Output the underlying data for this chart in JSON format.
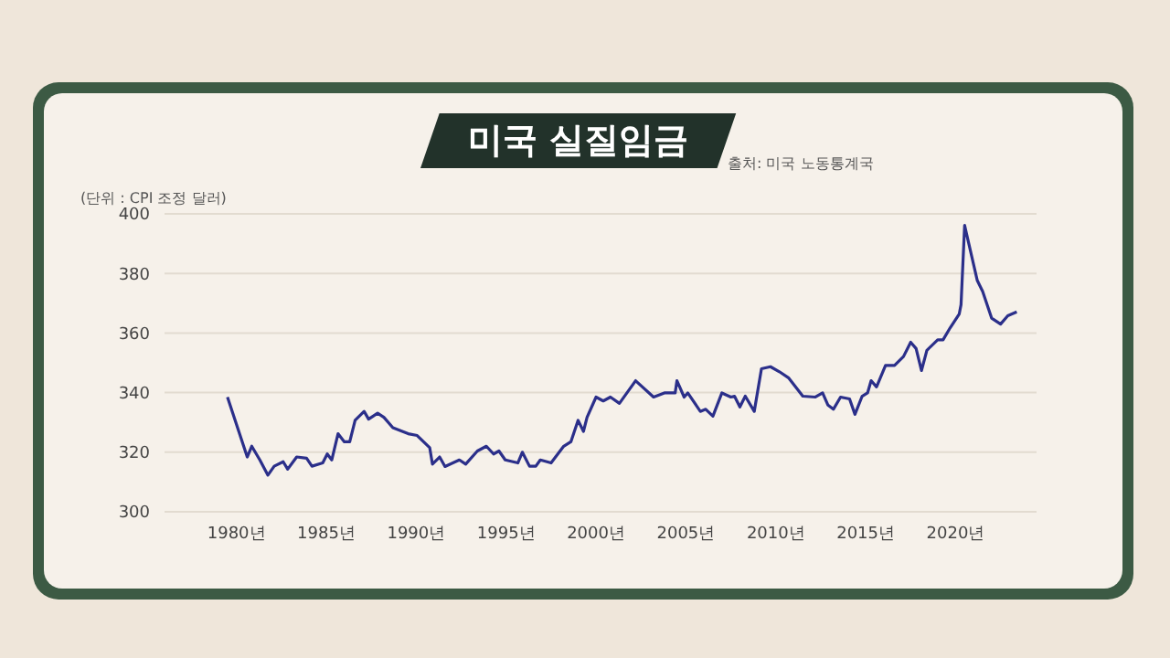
{
  "chart_data": {
    "type": "line",
    "title": "미국 실질임금",
    "ylabel": "(단위 : CPI 조정 달러)",
    "annotations": [
      "출처: 미국 노동통계국"
    ],
    "x": [
      1979.5,
      1980.6,
      1980.85,
      1981.3,
      1981.75,
      1982.1,
      1982.6,
      1982.85,
      1983.35,
      1983.9,
      1984.2,
      1984.8,
      1985.05,
      1985.3,
      1985.65,
      1986,
      1986.3,
      1986.6,
      1987.1,
      1987.35,
      1987.85,
      1988.2,
      1988.7,
      1989.55,
      1990.05,
      1990.75,
      1990.9,
      1991.3,
      1991.6,
      1992.4,
      1992.75,
      1993.4,
      1993.9,
      1994.3,
      1994.6,
      1994.95,
      1995.65,
      1995.9,
      1996.3,
      1996.65,
      1996.9,
      1997.5,
      1998.2,
      1998.6,
      1999,
      1999.3,
      1999.5,
      2000,
      2000.4,
      2000.8,
      2001.3,
      2002.2,
      2003.2,
      2003.8,
      2004.4,
      2004.5,
      2004.9,
      2005.1,
      2005.8,
      2006.1,
      2006.5,
      2007,
      2007.5,
      2007.7,
      2008,
      2008.3,
      2008.8,
      2009.2,
      2009.7,
      2010.2,
      2010.7,
      2011.5,
      2012.2,
      2012.6,
      2012.9,
      2013.2,
      2013.6,
      2014.1,
      2014.4,
      2014.8,
      2015.1,
      2015.3,
      2015.6,
      2016.1,
      2016.6,
      2017.1,
      2017.5,
      2017.8,
      2018.1,
      2018.4,
      2019,
      2019.3,
      2019.7,
      2020.2,
      2020.3,
      2020.5,
      2021.2,
      2021.5,
      2022,
      2022.5,
      2022.9,
      2023.4
    ],
    "values": [
      338.5,
      318.4,
      322,
      317.4,
      312.3,
      315.3,
      316.8,
      314.3,
      318.4,
      318,
      315.3,
      316.4,
      319.4,
      317.4,
      326.2,
      323.5,
      323.5,
      330.7,
      333.7,
      331.1,
      333.1,
      331.7,
      328.2,
      326.2,
      325.6,
      321.5,
      316,
      318.4,
      315.2,
      317.4,
      316,
      320.4,
      322,
      319.4,
      320.4,
      317.4,
      316.4,
      320,
      315.3,
      315.3,
      317.4,
      316.4,
      322,
      323.5,
      330.7,
      327,
      331.7,
      338.5,
      337.2,
      338.5,
      336.4,
      344,
      338.5,
      339.9,
      339.9,
      344,
      338.5,
      339.9,
      333.7,
      334.4,
      332.1,
      339.9,
      338.5,
      338.8,
      335.2,
      338.8,
      333.7,
      348,
      348.7,
      347,
      345,
      338.8,
      338.5,
      339.9,
      335.8,
      334.4,
      338.5,
      337.9,
      332.7,
      338.8,
      339.9,
      344,
      341.9,
      349.1,
      349.1,
      352.1,
      356.9,
      354.8,
      347.4,
      354.2,
      357.7,
      357.7,
      361.8,
      366.4,
      369.5,
      396.1,
      377.7,
      374,
      365,
      363,
      365.8,
      367.1
    ],
    "color": "#2b2f8a",
    "xlim": [
      1976,
      2024.5
    ],
    "ylim": [
      300,
      400
    ],
    "xticks": [
      {
        "value": 1980,
        "label": "1980년"
      },
      {
        "value": 1985,
        "label": "1985년"
      },
      {
        "value": 1990,
        "label": "1990년"
      },
      {
        "value": 1995,
        "label": "1995년"
      },
      {
        "value": 2000,
        "label": "2000년"
      },
      {
        "value": 2005,
        "label": "2005년"
      },
      {
        "value": 2010,
        "label": "2010년"
      },
      {
        "value": 2015,
        "label": "2015년"
      },
      {
        "value": 2020,
        "label": "2020년"
      }
    ],
    "yticks": [
      300,
      320,
      340,
      360,
      380,
      400
    ],
    "grid": "y"
  }
}
